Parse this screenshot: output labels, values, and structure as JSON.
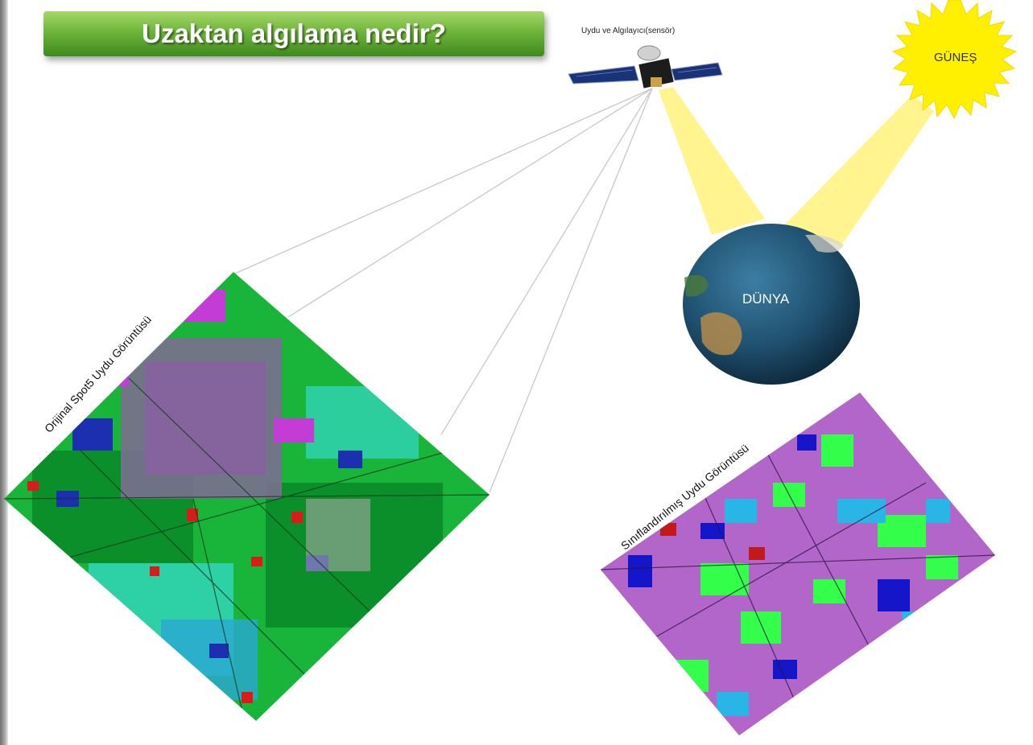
{
  "title": "Uzaktan algılama nedir?",
  "labels": {
    "satellite": "Uydu ve Algılayıcı(sensör)",
    "sun": "GÜNEŞ",
    "earth": "DÜNYA",
    "original_image": "Orijinal Spot5 Uydu Görüntüsü",
    "classified_image": "Sınıflandırılmış Uydu Görüntüsü"
  },
  "colors": {
    "title_banner": "#6fb53b",
    "sun": "#ffef00",
    "sun_beam": "#fff27a",
    "earth": "#1f4f6e",
    "original_palette": [
      "#18b53a",
      "#0a8f2a",
      "#35d9c9",
      "#1b2fb0",
      "#c43bd6",
      "#d81b1b",
      "#7a6f8f"
    ],
    "classified_palette": [
      "#b266c9",
      "#33ff4a",
      "#1515c9",
      "#29b6e6",
      "#c21a1a"
    ]
  }
}
